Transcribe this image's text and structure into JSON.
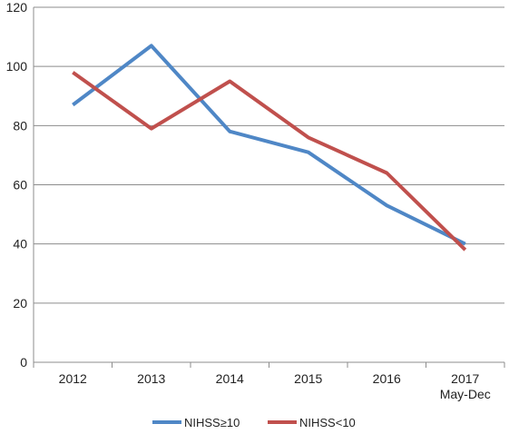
{
  "chart_data": {
    "type": "line",
    "categories": [
      "2012",
      "2013",
      "2014",
      "2015",
      "2016",
      "2017\nMay-Dec"
    ],
    "series": [
      {
        "name": "NIHSS≥10",
        "color": "#4f87c6",
        "values": [
          87,
          107,
          78,
          71,
          53,
          40
        ]
      },
      {
        "name": "NIHSS<10",
        "color": "#c0504d",
        "values": [
          98,
          79,
          95,
          76,
          64,
          38
        ]
      }
    ],
    "ylim": [
      0,
      120
    ],
    "yticks": [
      0,
      20,
      40,
      60,
      80,
      100,
      120
    ],
    "grid": true,
    "legend": "bottom",
    "colors": {
      "gridline": "#8c8c8c",
      "axis": "#8c8c8c"
    }
  }
}
